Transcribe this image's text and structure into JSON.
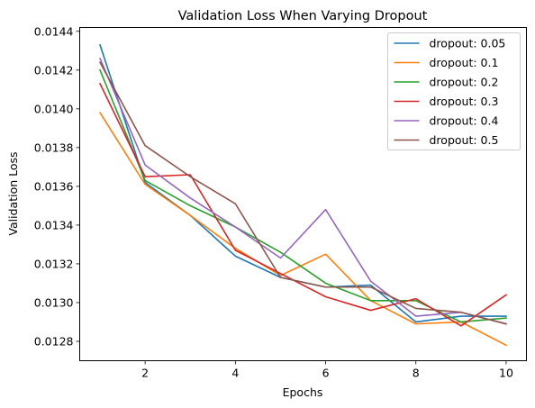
{
  "chart_data": {
    "type": "line",
    "title": "Validation Loss When Varying Dropout",
    "xlabel": "Epochs",
    "ylabel": "Validation Loss",
    "xlim": [
      0.55,
      10.45
    ],
    "ylim": [
      0.0127,
      0.01442
    ],
    "x": [
      1,
      2,
      3,
      4,
      5,
      6,
      7,
      8,
      9,
      10
    ],
    "xticks": [
      2,
      4,
      6,
      8,
      10
    ],
    "xtick_labels": [
      "2",
      "4",
      "6",
      "8",
      "10"
    ],
    "yticks": [
      0.0128,
      0.013,
      0.0132,
      0.0134,
      0.0136,
      0.0138,
      0.014,
      0.0142,
      0.0144
    ],
    "ytick_labels": [
      "0.0128",
      "0.0130",
      "0.0132",
      "0.0134",
      "0.0136",
      "0.0138",
      "0.0140",
      "0.0142",
      "0.0144"
    ],
    "grid": false,
    "legend_position": "top-right",
    "series": [
      {
        "name": "dropout: 0.05",
        "color": "#1f77b4",
        "values": [
          0.01433,
          0.01362,
          0.01345,
          0.01324,
          0.01313,
          0.01308,
          0.01309,
          0.0129,
          0.01293,
          0.01293
        ]
      },
      {
        "name": "dropout: 0.1",
        "color": "#ff7f0e",
        "values": [
          0.01398,
          0.01361,
          0.01345,
          0.01328,
          0.01314,
          0.01325,
          0.01301,
          0.01289,
          0.0129,
          0.01278
        ]
      },
      {
        "name": "dropout: 0.2",
        "color": "#2ca02c",
        "values": [
          0.0142,
          0.01363,
          0.0135,
          0.01339,
          0.01326,
          0.0131,
          0.01301,
          0.01301,
          0.0129,
          0.01292
        ]
      },
      {
        "name": "dropout: 0.3",
        "color": "#d62728",
        "values": [
          0.01413,
          0.01365,
          0.01366,
          0.01327,
          0.01315,
          0.01303,
          0.01296,
          0.01302,
          0.01288,
          0.01304
        ]
      },
      {
        "name": "dropout: 0.4",
        "color": "#9467bd",
        "values": [
          0.01426,
          0.01371,
          0.01354,
          0.01339,
          0.01323,
          0.01348,
          0.01311,
          0.01293,
          0.01295,
          0.01289
        ]
      },
      {
        "name": "dropout: 0.5",
        "color": "#8c564b",
        "values": [
          0.01424,
          0.01381,
          0.01365,
          0.01351,
          0.01313,
          0.01308,
          0.01308,
          0.01297,
          0.01295,
          0.01289
        ]
      }
    ]
  }
}
